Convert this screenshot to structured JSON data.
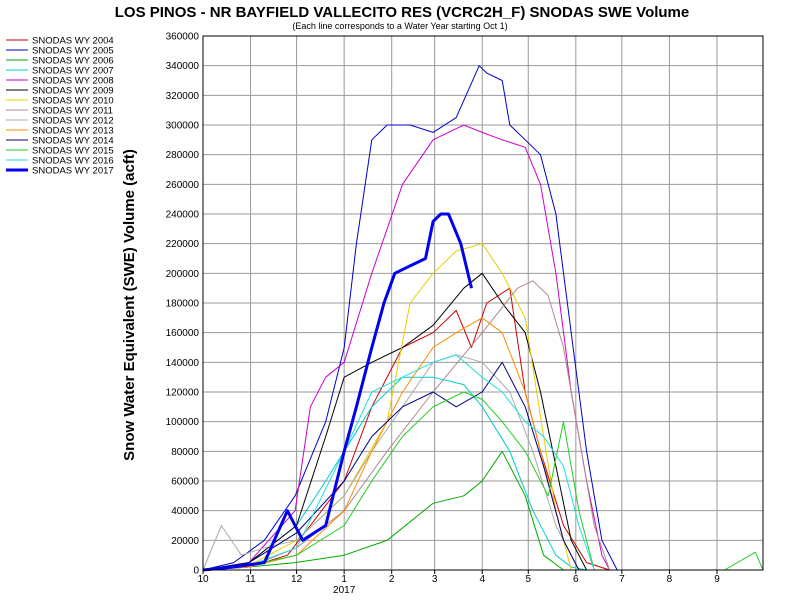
{
  "chart_data": {
    "type": "line",
    "title": "LOS PINOS - NR BAYFIELD VALLECITO RES (VCRC2H_F) SNODAS SWE Volume",
    "subtitle": "(Each line corresponds to a Water Year starting Oct 1)",
    "ylabel": "Snow Water Equivalent (SWE) Volume (acft)",
    "xlabel": "",
    "ylim": [
      0,
      360000
    ],
    "y_ticks": [
      0,
      20000,
      40000,
      60000,
      80000,
      100000,
      120000,
      140000,
      160000,
      180000,
      200000,
      220000,
      240000,
      260000,
      280000,
      300000,
      320000,
      340000,
      360000
    ],
    "xlim": [
      0,
      365
    ],
    "x_ticks": [
      {
        "day": 0,
        "label": "10"
      },
      {
        "day": 31,
        "label": "11"
      },
      {
        "day": 61,
        "label": "12"
      },
      {
        "day": 92,
        "label": "1"
      },
      {
        "day": 123,
        "label": "2"
      },
      {
        "day": 151,
        "label": "3"
      },
      {
        "day": 182,
        "label": "4"
      },
      {
        "day": 212,
        "label": "5"
      },
      {
        "day": 243,
        "label": "6"
      },
      {
        "day": 273,
        "label": "7"
      },
      {
        "day": 304,
        "label": "8"
      },
      {
        "day": 335,
        "label": "9"
      }
    ],
    "year_label": {
      "day": 92,
      "label": "2017"
    },
    "grid": true,
    "legend_position": "left",
    "series": [
      {
        "name": "SNODAS WY 2004",
        "color": "#cc0000",
        "x": [
          0,
          30,
          55,
          70,
          92,
          110,
          130,
          150,
          165,
          175,
          185,
          200,
          210,
          220,
          235,
          250,
          265
        ],
        "values": [
          0,
          2000,
          10000,
          30000,
          60000,
          110000,
          150000,
          160000,
          175000,
          150000,
          180000,
          190000,
          120000,
          80000,
          30000,
          5000,
          0
        ]
      },
      {
        "name": "SNODAS WY 2005",
        "color": "#0000cc",
        "x": [
          0,
          20,
          40,
          60,
          80,
          92,
          100,
          110,
          120,
          135,
          150,
          165,
          180,
          185,
          195,
          200,
          210,
          220,
          230,
          240,
          250,
          260,
          270
        ],
        "values": [
          0,
          5000,
          20000,
          50000,
          100000,
          150000,
          220000,
          290000,
          300000,
          300000,
          295000,
          305000,
          340000,
          335000,
          330000,
          300000,
          290000,
          280000,
          240000,
          160000,
          80000,
          20000,
          0
        ]
      },
      {
        "name": "SNODAS WY 2006",
        "color": "#00aa00",
        "x": [
          0,
          30,
          60,
          92,
          120,
          150,
          170,
          182,
          195,
          210,
          222,
          235,
          250
        ],
        "values": [
          0,
          2000,
          5000,
          10000,
          20000,
          45000,
          50000,
          60000,
          80000,
          50000,
          10000,
          0,
          0
        ]
      },
      {
        "name": "SNODAS WY 2007",
        "color": "#00cccc",
        "x": [
          0,
          30,
          61,
          80,
          92,
          110,
          130,
          150,
          170,
          182,
          200,
          215,
          230,
          240,
          250
        ],
        "values": [
          0,
          5000,
          30000,
          60000,
          80000,
          110000,
          130000,
          130000,
          125000,
          110000,
          80000,
          40000,
          10000,
          2000,
          0
        ]
      },
      {
        "name": "SNODAS WY 2008",
        "color": "#cc00cc",
        "x": [
          0,
          30,
          60,
          70,
          80,
          92,
          110,
          130,
          150,
          170,
          182,
          195,
          210,
          220,
          230,
          240,
          250,
          260,
          265
        ],
        "values": [
          0,
          5000,
          40000,
          110000,
          130000,
          140000,
          200000,
          260000,
          290000,
          300000,
          295000,
          290000,
          285000,
          260000,
          200000,
          120000,
          60000,
          10000,
          0
        ]
      },
      {
        "name": "SNODAS WY 2009",
        "color": "#000000",
        "x": [
          0,
          30,
          61,
          80,
          92,
          110,
          130,
          150,
          170,
          182,
          195,
          210,
          220,
          230,
          240,
          250
        ],
        "values": [
          0,
          5000,
          30000,
          90000,
          130000,
          140000,
          150000,
          165000,
          190000,
          200000,
          180000,
          160000,
          120000,
          70000,
          20000,
          0
        ]
      },
      {
        "name": "SNODAS WY 2010",
        "color": "#e6d000",
        "x": [
          0,
          30,
          61,
          92,
          120,
          135,
          150,
          165,
          182,
          195,
          210,
          222,
          230,
          240
        ],
        "values": [
          0,
          3000,
          20000,
          50000,
          100000,
          180000,
          200000,
          215000,
          220000,
          200000,
          170000,
          90000,
          40000,
          0
        ]
      },
      {
        "name": "SNODAS WY 2011",
        "color": "#b08a8a",
        "x": [
          0,
          30,
          61,
          92,
          120,
          150,
          182,
          205,
          215,
          225,
          235,
          245,
          255,
          265
        ],
        "values": [
          0,
          2000,
          15000,
          40000,
          80000,
          120000,
          160000,
          190000,
          195000,
          185000,
          150000,
          90000,
          30000,
          0
        ]
      },
      {
        "name": "SNODAS WY 2012",
        "color": "#aaaaaa",
        "x": [
          0,
          12,
          25,
          40,
          61,
          92,
          110,
          130,
          150,
          165,
          182,
          200,
          215,
          230,
          245
        ],
        "values": [
          0,
          30000,
          10000,
          15000,
          20000,
          50000,
          80000,
          110000,
          140000,
          145000,
          140000,
          120000,
          80000,
          30000,
          0
        ]
      },
      {
        "name": "SNODAS WY 2013",
        "color": "#ff8c00",
        "x": [
          0,
          30,
          61,
          92,
          110,
          130,
          150,
          165,
          182,
          195,
          210,
          225,
          235,
          245
        ],
        "values": [
          0,
          2000,
          10000,
          40000,
          80000,
          120000,
          150000,
          160000,
          170000,
          160000,
          120000,
          60000,
          20000,
          0
        ]
      },
      {
        "name": "SNODAS WY 2014",
        "color": "#000080",
        "x": [
          0,
          30,
          61,
          92,
          110,
          130,
          150,
          165,
          182,
          195,
          210,
          222,
          235,
          245
        ],
        "values": [
          0,
          5000,
          25000,
          60000,
          90000,
          110000,
          120000,
          110000,
          120000,
          140000,
          110000,
          70000,
          20000,
          0
        ]
      },
      {
        "name": "SNODAS WY 2015",
        "color": "#22cc22",
        "x": [
          0,
          30,
          61,
          92,
          110,
          130,
          150,
          170,
          182,
          195,
          210,
          225,
          235,
          245,
          255,
          340,
          360,
          365
        ],
        "values": [
          0,
          3000,
          10000,
          30000,
          60000,
          90000,
          110000,
          120000,
          115000,
          100000,
          80000,
          50000,
          100000,
          40000,
          0,
          0,
          12000,
          0
        ]
      },
      {
        "name": "SNODAS WY 2016",
        "color": "#22dddd",
        "x": [
          0,
          30,
          61,
          92,
          110,
          130,
          150,
          165,
          182,
          195,
          210,
          222,
          235,
          245,
          255
        ],
        "values": [
          0,
          3000,
          15000,
          80000,
          120000,
          130000,
          140000,
          145000,
          130000,
          120000,
          100000,
          90000,
          70000,
          30000,
          0
        ]
      },
      {
        "name": "SNODAS WY 2017",
        "color": "#0000ee",
        "x": [
          0,
          20,
          40,
          55,
          65,
          80,
          92,
          100,
          110,
          118,
          125,
          135,
          145,
          150,
          155,
          160,
          168,
          175
        ],
        "values": [
          0,
          2000,
          5000,
          40000,
          20000,
          30000,
          80000,
          110000,
          150000,
          180000,
          200000,
          205000,
          210000,
          235000,
          240000,
          240000,
          220000,
          190000
        ]
      }
    ]
  }
}
